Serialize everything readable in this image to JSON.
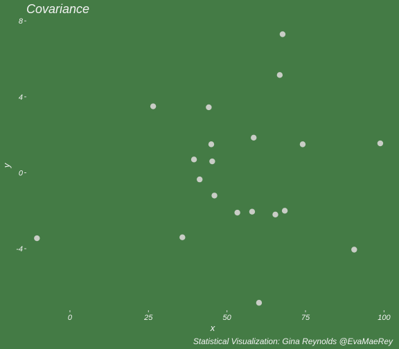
{
  "chart_data": {
    "type": "scatter",
    "title": "Covariance",
    "xlabel": "x",
    "ylabel": "y",
    "caption": "Statistical Visualization: Gina Reynolds @EvaMaeRey",
    "xlim": [
      -13,
      103
    ],
    "ylim": [
      -6.95,
      8.3
    ],
    "x_ticks": [
      0,
      25,
      50,
      75,
      100
    ],
    "y_ticks": [
      -4,
      0,
      4,
      8
    ],
    "grid": false,
    "points": [
      {
        "x": -10.5,
        "y": -3.45
      },
      {
        "x": 26.5,
        "y": 3.5
      },
      {
        "x": 35.8,
        "y": -3.4
      },
      {
        "x": 39.5,
        "y": 0.7
      },
      {
        "x": 41.3,
        "y": -0.35
      },
      {
        "x": 44.2,
        "y": 3.45
      },
      {
        "x": 45.0,
        "y": 1.5
      },
      {
        "x": 45.3,
        "y": 0.6
      },
      {
        "x": 46.0,
        "y": -1.2
      },
      {
        "x": 53.3,
        "y": -2.1
      },
      {
        "x": 58.0,
        "y": -2.05
      },
      {
        "x": 58.5,
        "y": 1.85
      },
      {
        "x": 60.2,
        "y": -6.85
      },
      {
        "x": 65.4,
        "y": -2.2
      },
      {
        "x": 66.8,
        "y": 5.15
      },
      {
        "x": 67.7,
        "y": 7.3
      },
      {
        "x": 68.4,
        "y": -2.0
      },
      {
        "x": 74.1,
        "y": 1.5
      },
      {
        "x": 90.5,
        "y": -4.05
      },
      {
        "x": 98.8,
        "y": 1.55
      }
    ]
  },
  "colors": {
    "background": "#447b45",
    "point": "#c9cdc6",
    "text": "#f2f2f2",
    "tick_mark": "#d9d9d9"
  }
}
